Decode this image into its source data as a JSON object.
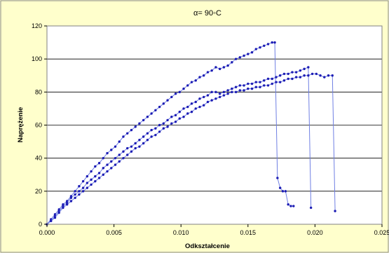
{
  "chart_data": {
    "type": "scatter",
    "title": "α= 90◦C",
    "xlabel": "Odkształcenie",
    "ylabel": "Naprężenie",
    "xlim": [
      0,
      0.025
    ],
    "ylim": [
      0,
      120
    ],
    "x_ticks": [
      "0.000",
      "0.005",
      "0.010",
      "0.015",
      "0.020",
      "0.025"
    ],
    "x_tick_values": [
      0,
      0.005,
      0.01,
      0.015,
      0.02,
      0.025
    ],
    "y_ticks": [
      "0",
      "20",
      "40",
      "60",
      "80",
      "100",
      "120"
    ],
    "y_tick_values": [
      0,
      20,
      40,
      60,
      80,
      100,
      120
    ],
    "grid": "horizontal",
    "legend": "none",
    "colors": {
      "series": "#1c1cb4",
      "line": "#6f7fe3",
      "plot_bg": "#ffffff",
      "outer_bg": "#ffffcc",
      "grid": "#000000"
    },
    "series": [
      {
        "x": [
          0,
          0.0003,
          0.0006,
          0.0009,
          0.0012,
          0.0015,
          0.0018,
          0.0021,
          0.0024,
          0.0027,
          0.003,
          0.0033,
          0.0036,
          0.0039,
          0.0042,
          0.0045,
          0.0048,
          0.0051,
          0.0054,
          0.0057,
          0.006,
          0.0063,
          0.0066,
          0.0069,
          0.0072,
          0.0075,
          0.0078,
          0.0081,
          0.0084,
          0.0087,
          0.009,
          0.0093,
          0.0096,
          0.0099,
          0.0102,
          0.0105,
          0.0108,
          0.0111,
          0.0114,
          0.0117,
          0.012,
          0.0123,
          0.0126,
          0.0129,
          0.0132,
          0.0135,
          0.0138,
          0.0141,
          0.0144,
          0.0147,
          0.015,
          0.0153,
          0.0156,
          0.0159,
          0.0162,
          0.0165,
          0.0168,
          0.017,
          0.0172,
          0.0174,
          0.0176,
          0.0178,
          0.018,
          0.0182,
          0.0184
        ],
        "y": [
          0,
          3,
          6,
          9,
          12,
          14,
          17,
          20,
          23,
          26,
          29,
          32,
          35,
          37,
          40,
          43,
          45,
          47,
          50,
          53,
          55,
          57,
          59,
          61,
          63,
          65,
          67,
          69,
          71,
          73,
          75,
          77,
          79,
          80,
          82,
          84,
          86,
          87,
          89,
          90,
          92,
          93,
          95,
          94,
          95,
          96,
          98,
          100,
          101,
          102,
          103,
          104,
          106,
          107,
          108,
          109,
          110,
          110,
          28,
          22,
          20,
          20,
          12,
          11,
          11
        ]
      },
      {
        "x": [
          0,
          0.0003,
          0.0006,
          0.0009,
          0.0012,
          0.0015,
          0.0018,
          0.0021,
          0.0024,
          0.0027,
          0.003,
          0.0033,
          0.0036,
          0.0039,
          0.0042,
          0.0045,
          0.0048,
          0.0051,
          0.0054,
          0.0057,
          0.006,
          0.0063,
          0.0066,
          0.0069,
          0.0072,
          0.0075,
          0.0078,
          0.0081,
          0.0084,
          0.0087,
          0.009,
          0.0093,
          0.0096,
          0.0099,
          0.0102,
          0.0105,
          0.0108,
          0.0111,
          0.0114,
          0.0117,
          0.012,
          0.0123,
          0.0126,
          0.0129,
          0.0132,
          0.0135,
          0.0138,
          0.0141,
          0.0144,
          0.0147,
          0.015,
          0.0153,
          0.0156,
          0.0159,
          0.0162,
          0.0165,
          0.0168,
          0.0171,
          0.0174,
          0.0177,
          0.018,
          0.0183,
          0.0186,
          0.0189,
          0.0192,
          0.0195,
          0.0197
        ],
        "y": [
          0,
          2,
          5,
          8,
          11,
          13,
          16,
          18,
          20,
          22,
          25,
          27,
          29,
          31,
          34,
          36,
          38,
          40,
          42,
          44,
          46,
          47,
          49,
          51,
          53,
          55,
          57,
          58,
          60,
          61,
          63,
          65,
          66,
          68,
          70,
          71,
          73,
          74,
          76,
          77,
          78,
          80,
          80,
          79,
          80,
          81,
          82,
          83,
          84,
          84,
          85,
          85,
          86,
          86,
          87,
          88,
          88,
          89,
          90,
          91,
          91,
          92,
          92,
          93,
          94,
          95,
          10
        ]
      },
      {
        "x": [
          0,
          0.0003,
          0.0006,
          0.0009,
          0.0012,
          0.0015,
          0.0018,
          0.0021,
          0.0024,
          0.0027,
          0.003,
          0.0033,
          0.0036,
          0.0039,
          0.0042,
          0.0045,
          0.0048,
          0.0051,
          0.0054,
          0.0057,
          0.006,
          0.0063,
          0.0066,
          0.0069,
          0.0072,
          0.0075,
          0.0078,
          0.0081,
          0.0084,
          0.0087,
          0.009,
          0.0093,
          0.0096,
          0.0099,
          0.0102,
          0.0105,
          0.0108,
          0.0111,
          0.0114,
          0.0117,
          0.012,
          0.0123,
          0.0126,
          0.0129,
          0.0132,
          0.0135,
          0.0138,
          0.0141,
          0.0144,
          0.0147,
          0.015,
          0.0153,
          0.0156,
          0.0159,
          0.0162,
          0.0165,
          0.0168,
          0.0171,
          0.0174,
          0.0177,
          0.018,
          0.0183,
          0.0186,
          0.0189,
          0.0192,
          0.0195,
          0.0198,
          0.0201,
          0.0204,
          0.0207,
          0.021,
          0.0213,
          0.0215
        ],
        "y": [
          0,
          2,
          4,
          7,
          10,
          12,
          14,
          16,
          18,
          20,
          22,
          24,
          26,
          28,
          30,
          32,
          34,
          36,
          38,
          40,
          42,
          44,
          46,
          47,
          49,
          51,
          53,
          54,
          56,
          58,
          59,
          61,
          62,
          64,
          65,
          67,
          68,
          70,
          71,
          72,
          74,
          75,
          76,
          77,
          78,
          79,
          80,
          80,
          81,
          81,
          82,
          82,
          83,
          83,
          84,
          84,
          85,
          86,
          86,
          87,
          88,
          88,
          89,
          89,
          90,
          90,
          91,
          91,
          90,
          89,
          90,
          90,
          8
        ]
      }
    ]
  }
}
